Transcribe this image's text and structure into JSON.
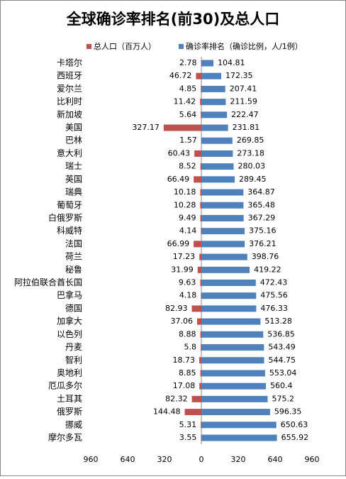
{
  "chart_data": {
    "type": "butterfly-bar",
    "title": "全球确诊率排名(前30)及总人口",
    "categories": [
      "卡塔尔",
      "西班牙",
      "爱尔兰",
      "比利时",
      "新加坡",
      "美国",
      "巴林",
      "意大利",
      "瑞士",
      "英国",
      "瑞典",
      "葡萄牙",
      "白俄罗斯",
      "科威特",
      "法国",
      "荷兰",
      "秘鲁",
      "阿拉伯联合酋长国",
      "巴拿马",
      "德国",
      "加拿大",
      "以色列",
      "丹麦",
      "智利",
      "奥地利",
      "厄瓜多尔",
      "土耳其",
      "俄罗斯",
      "挪威",
      "摩尔多瓦"
    ],
    "series": [
      {
        "name": "总人口（百万人）",
        "color": "#c0504d",
        "values": [
          2.78,
          46.72,
          4.85,
          11.42,
          5.64,
          327.17,
          1.57,
          60.43,
          8.52,
          66.49,
          10.18,
          10.28,
          9.49,
          4.14,
          66.99,
          17.23,
          31.99,
          9.63,
          4.18,
          82.93,
          37.06,
          8.88,
          5.8,
          18.73,
          8.85,
          17.08,
          82.32,
          144.48,
          5.31,
          3.55
        ]
      },
      {
        "name": "确诊率排名（确诊比例，人/1例）",
        "color": "#4f81bd",
        "values": [
          104.81,
          172.35,
          207.41,
          211.59,
          222.47,
          231.81,
          269.85,
          273.18,
          280.03,
          289.45,
          364.87,
          365.48,
          367.29,
          375.16,
          376.21,
          398.76,
          419.22,
          472.43,
          475.56,
          476.33,
          513.28,
          536.85,
          543.49,
          544.75,
          553.04,
          560.4,
          575.2,
          596.35,
          650.63,
          655.92
        ]
      }
    ],
    "xlim": [
      -960,
      960
    ],
    "xticks": [
      {
        "value": -960,
        "label": "960"
      },
      {
        "value": -640,
        "label": "640"
      },
      {
        "value": -320,
        "label": "320"
      },
      0,
      320,
      640,
      960
    ]
  }
}
